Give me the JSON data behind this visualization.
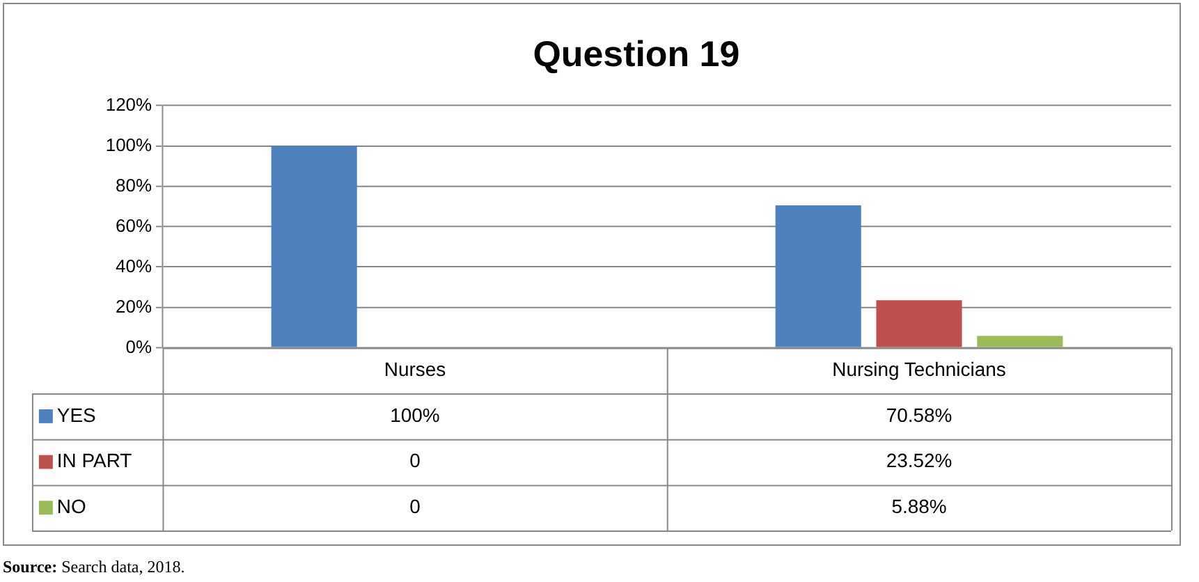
{
  "chart_data": {
    "type": "bar",
    "title": "Question 19",
    "categories": [
      "Nurses",
      "Nursing Technicians"
    ],
    "series": [
      {
        "name": "YES",
        "color": "#4f81bd",
        "values": [
          100,
          70.58
        ],
        "value_labels": [
          "100%",
          "70.58%"
        ]
      },
      {
        "name": "IN PART",
        "color": "#c0504d",
        "values": [
          0,
          23.52
        ],
        "value_labels": [
          "0",
          "23.52%"
        ]
      },
      {
        "name": "NO",
        "color": "#9bbb59",
        "values": [
          0,
          5.88
        ],
        "value_labels": [
          "0",
          "5.88%"
        ]
      }
    ],
    "ylim": [
      0,
      120
    ],
    "yticks": [
      {
        "value": 0,
        "label": "0%"
      },
      {
        "value": 20,
        "label": "20%"
      },
      {
        "value": 40,
        "label": "40%"
      },
      {
        "value": 60,
        "label": "60%"
      },
      {
        "value": 80,
        "label": "80%"
      },
      {
        "value": 100,
        "label": "100%"
      },
      {
        "value": 120,
        "label": "120%"
      }
    ],
    "grid": "y",
    "legend": "bottom",
    "annotations": [
      "Source: Search data, 2018."
    ]
  }
}
